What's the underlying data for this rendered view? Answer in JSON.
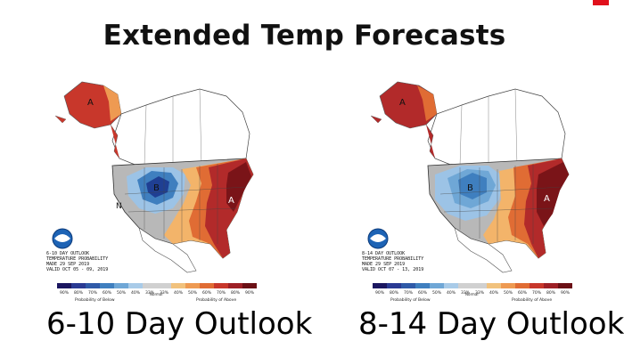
{
  "slide": {
    "title": "Extended Temp Forecasts",
    "accent_color": "#e0101c"
  },
  "maps": [
    {
      "caption": "6-10 Day Outlook",
      "info_lines": [
        "6-10 DAY OUTLOOK",
        "TEMPERATURE PROBABILITY",
        "MADE 29 SEP 2019",
        "VALID OCT 05 - 09, 2019"
      ],
      "labels": [
        {
          "text": "A",
          "region": "alaska"
        },
        {
          "text": "B",
          "region": "north-central"
        },
        {
          "text": "N",
          "region": "west"
        },
        {
          "text": "A",
          "region": "southeast"
        }
      ]
    },
    {
      "caption": "8-14 Day Outlook",
      "info_lines": [
        "8-14 DAY OUTLOOK",
        "TEMPERATURE PROBABILITY",
        "MADE 29 SEP 2019",
        "VALID OCT 07 - 13, 2019"
      ],
      "labels": [
        {
          "text": "A",
          "region": "alaska"
        },
        {
          "text": "B",
          "region": "north-central"
        },
        {
          "text": "A",
          "region": "southeast"
        }
      ]
    }
  ],
  "legend": {
    "below_title": "Probability of Below",
    "normal_title": "Normal",
    "above_title": "Probability of Above",
    "ticks": [
      "90%",
      "80%",
      "70%",
      "60%",
      "50%",
      "40%",
      "33%",
      "33%",
      "40%",
      "50%",
      "60%",
      "70%",
      "80%",
      "90%"
    ],
    "colors": [
      "#1b1660",
      "#2a3a93",
      "#2f5aa8",
      "#3f7fbf",
      "#6fa7d6",
      "#a9cbe8",
      "#d0d0d0",
      "#d0d0d0",
      "#f1c27d",
      "#ee9a52",
      "#e06c34",
      "#c8372b",
      "#9e2026",
      "#6b1015"
    ]
  },
  "colors": {
    "cold_strong": "#1f3f93",
    "cold_mid": "#3f7fbf",
    "cold_light": "#9cc3e6",
    "warm_light": "#f3b46a",
    "warm_mid": "#e06c34",
    "warm_strong": "#b22a2a",
    "warm_deep": "#7a1418",
    "normal": "#b8b8b8"
  }
}
